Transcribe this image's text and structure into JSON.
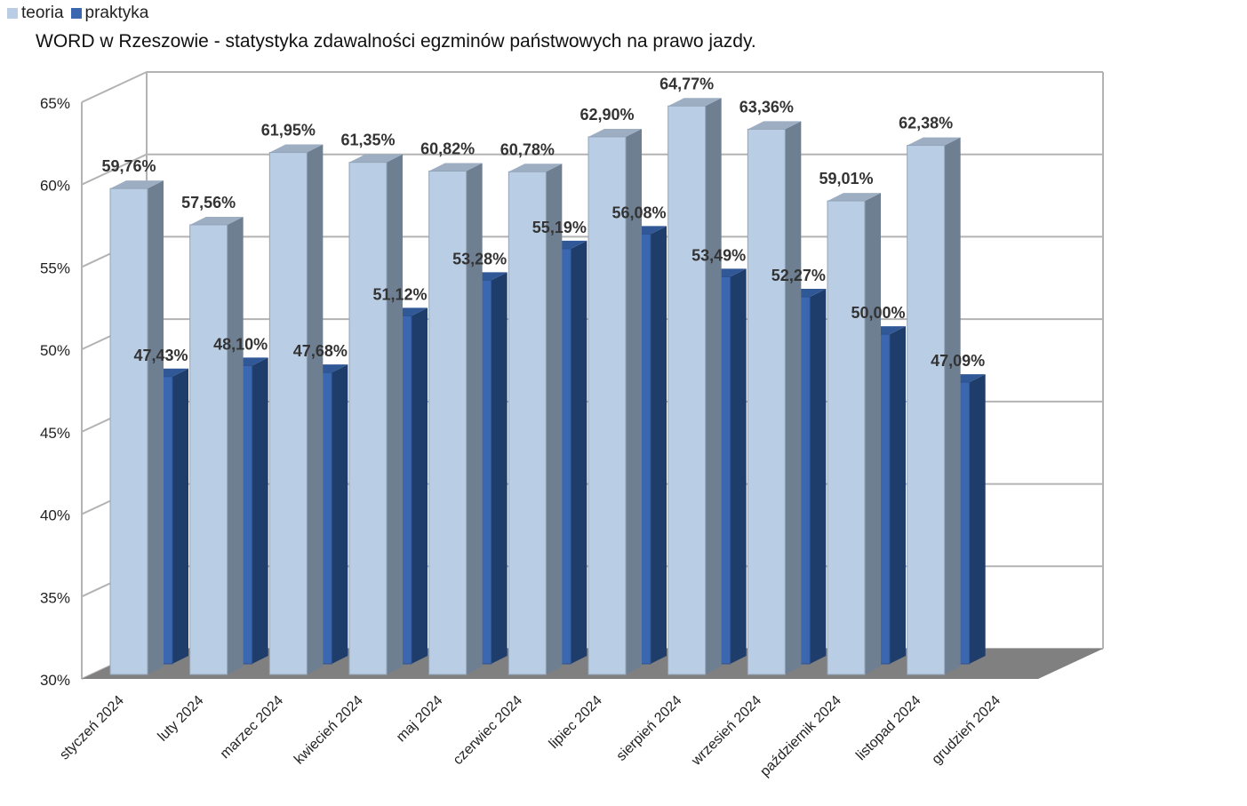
{
  "chart_data": {
    "type": "bar",
    "title": "WORD w Rzeszowie - statystyka zdawalności egzminów państwowych na prawo jazdy.",
    "xlabel": "",
    "ylabel": "",
    "ylim": [
      30,
      65
    ],
    "yticks": [
      30,
      35,
      40,
      45,
      50,
      55,
      60,
      65
    ],
    "ytick_suffix": "%",
    "grid": true,
    "legend_position": "top-left",
    "categories": [
      "styczeń 2024",
      "luty 2024",
      "marzec 2024",
      "kwiecień 2024",
      "maj 2024",
      "czerwiec 2024",
      "lipiec 2024",
      "sierpień 2024",
      "wrzesień 2024",
      "październik 2024",
      "listopad 2024",
      "grudzień 2024"
    ],
    "series": [
      {
        "name": "teoria",
        "color": "#b9cde5",
        "values": [
          59.76,
          57.56,
          61.95,
          61.35,
          60.82,
          60.78,
          62.9,
          64.77,
          63.36,
          59.01,
          62.38,
          null
        ],
        "labels": [
          "59,76%",
          "57,56%",
          "61,95%",
          "61,35%",
          "60,82%",
          "60,78%",
          "62,90%",
          "64,77%",
          "63,36%",
          "59,01%",
          "62,38%",
          ""
        ]
      },
      {
        "name": "praktyka",
        "color": "#3a67b0",
        "values": [
          47.43,
          48.1,
          47.68,
          51.12,
          53.28,
          55.19,
          56.08,
          53.49,
          52.27,
          50.0,
          47.09,
          null
        ],
        "labels": [
          "47,43%",
          "48,10%",
          "47,68%",
          "51,12%",
          "53,28%",
          "55,19%",
          "56,08%",
          "53,49%",
          "52,27%",
          "50,00%",
          "47,09%",
          ""
        ]
      }
    ]
  }
}
